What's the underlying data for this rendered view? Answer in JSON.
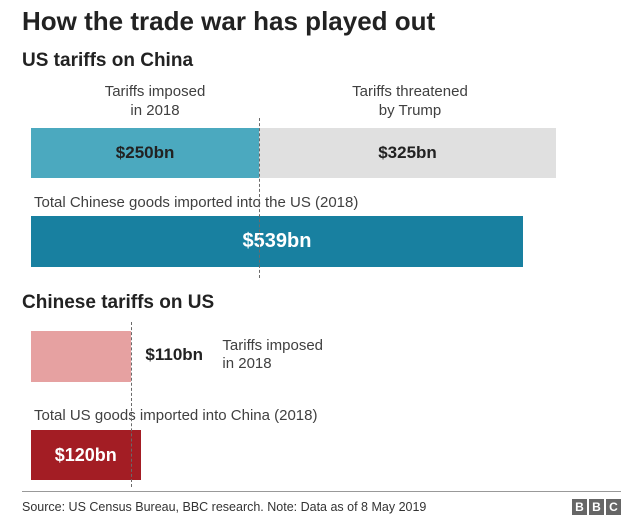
{
  "title": "How the trade war has played out",
  "source": "Source: US Census Bureau, BBC research. Note: Data as of 8 May 2019",
  "logo": [
    "B",
    "B",
    "C"
  ],
  "colors": {
    "us_imposed": "#4ba9bf",
    "us_threatened": "#e0e0e0",
    "us_total": "#1880a0",
    "china_imposed": "#e6a1a1",
    "china_total": "#a31d24"
  },
  "chart_data": [
    {
      "type": "bar",
      "title": "US tariffs on China",
      "unit": "$bn",
      "xlim": [
        0,
        539
      ],
      "series": [
        {
          "name": "Tariffs imposed\nin 2018",
          "values": [
            250
          ],
          "value_label": "$250bn"
        },
        {
          "name": "Tariffs threatened\nby Trump",
          "values": [
            325
          ],
          "value_label": "$325bn"
        }
      ],
      "total": {
        "name": "Total Chinese goods imported into the US (2018)",
        "value": 539,
        "value_label": "$539bn"
      },
      "divider_at": 250
    },
    {
      "type": "bar",
      "title": "Chinese tariffs on US",
      "unit": "$bn",
      "xlim": [
        0,
        539
      ],
      "series": [
        {
          "name": "Tariffs imposed\nin 2018",
          "values": [
            110
          ],
          "value_label": "$110bn"
        }
      ],
      "total": {
        "name": "Total US goods imported into China (2018)",
        "value": 120,
        "value_label": "$120bn"
      },
      "divider_at": 110
    }
  ]
}
